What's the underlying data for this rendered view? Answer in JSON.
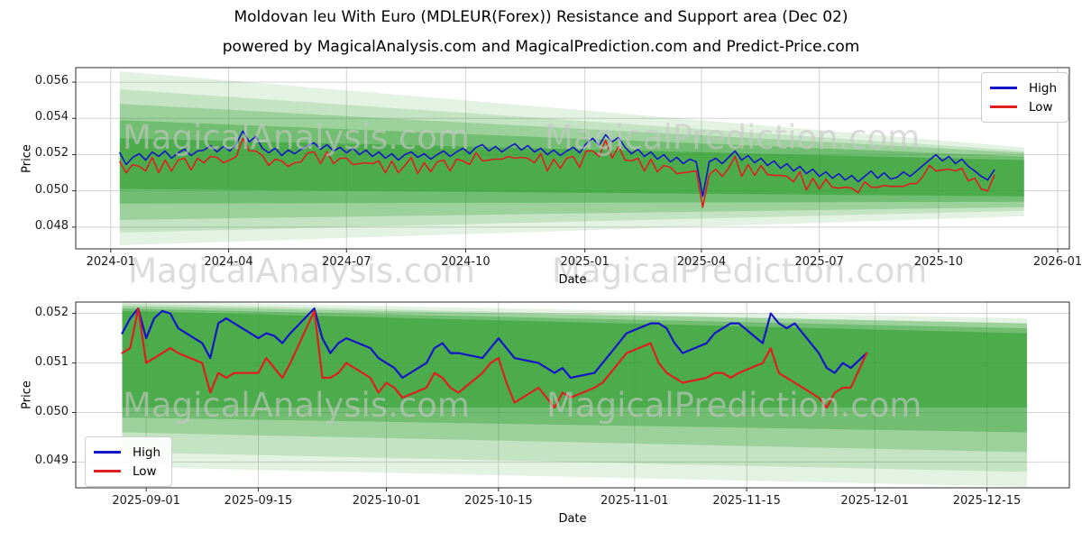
{
  "header": {
    "title": "Moldovan leu With Euro (MDLEUR(Forex)) Resistance and Support area (Dec 02)",
    "subtitle": "powered by MagicalAnalysis.com and MagicalPrediction.com and Predict-Price.com"
  },
  "watermarks": {
    "left": "MagicalAnalysis.com",
    "right": "MagicalPrediction.com"
  },
  "legend": {
    "high": "High",
    "low": "Low"
  },
  "colors": {
    "high": "#1414c8",
    "low": "#de1f1f",
    "band": "#2e9e2e",
    "grid": "#d2d2d2",
    "spine": "#2b2b2b",
    "watermark": "rgba(198,198,198,0.62)"
  },
  "chart_data": [
    {
      "name": "long-term",
      "type": "line",
      "xlabel": "Date",
      "ylabel": "Price",
      "x_unit": "days since 2024-01-01",
      "xlim": [
        -27,
        740
      ],
      "ylim": [
        0.0468,
        0.0568
      ],
      "grid": true,
      "legend_position": "upper-right",
      "xticks": [
        {
          "day": 0,
          "label": "2024-01"
        },
        {
          "day": 91,
          "label": "2024-04"
        },
        {
          "day": 182,
          "label": "2024-07"
        },
        {
          "day": 274,
          "label": "2024-10"
        },
        {
          "day": 366,
          "label": "2025-01"
        },
        {
          "day": 456,
          "label": "2025-04"
        },
        {
          "day": 547,
          "label": "2025-07"
        },
        {
          "day": 639,
          "label": "2025-10"
        },
        {
          "day": 731,
          "label": "2026-01"
        }
      ],
      "yticks": [
        0.048,
        0.05,
        0.052,
        0.054,
        0.056
      ],
      "x_start": 7,
      "x_step": 5,
      "series": [
        {
          "name": "High",
          "values": [
            0.0521,
            0.05145,
            0.05185,
            0.05205,
            0.0517,
            0.05215,
            0.0519,
            0.0522,
            0.0518,
            0.0521,
            0.0523,
            0.05195,
            0.0522,
            0.05225,
            0.0525,
            0.05215,
            0.05245,
            0.0522,
            0.0526,
            0.0533,
            0.0527,
            0.053,
            0.05235,
            0.0521,
            0.05235,
            0.05195,
            0.05225,
            0.05205,
            0.0523,
            0.0525,
            0.05265,
            0.0523,
            0.05255,
            0.0522,
            0.0524,
            0.0521,
            0.05235,
            0.052,
            0.05225,
            0.0519,
            0.05215,
            0.0518,
            0.05205,
            0.0517,
            0.052,
            0.05215,
            0.05185,
            0.05205,
            0.05175,
            0.052,
            0.0522,
            0.0519,
            0.05215,
            0.05235,
            0.05205,
            0.0524,
            0.05255,
            0.0522,
            0.05245,
            0.05215,
            0.0524,
            0.0526,
            0.05225,
            0.0525,
            0.05215,
            0.05235,
            0.052,
            0.05225,
            0.05195,
            0.0522,
            0.0524,
            0.0521,
            0.0526,
            0.0529,
            0.0525,
            0.0531,
            0.0527,
            0.05295,
            0.0524,
            0.05205,
            0.0523,
            0.0519,
            0.05215,
            0.05175,
            0.052,
            0.0516,
            0.05185,
            0.0515,
            0.05175,
            0.0516,
            0.0497,
            0.0516,
            0.0518,
            0.0515,
            0.05185,
            0.0522,
            0.0517,
            0.05195,
            0.05155,
            0.0518,
            0.0514,
            0.05165,
            0.05125,
            0.0515,
            0.0511,
            0.05135,
            0.05095,
            0.0512,
            0.0508,
            0.05105,
            0.0507,
            0.05095,
            0.0506,
            0.05085,
            0.0505,
            0.0508,
            0.0511,
            0.0507,
            0.051,
            0.05065,
            0.05075,
            0.05105,
            0.0508,
            0.0511,
            0.0514,
            0.0517,
            0.052,
            0.05165,
            0.0519,
            0.0515,
            0.05175,
            0.05135,
            0.0511,
            0.0508,
            0.0506,
            0.05115
          ]
        },
        {
          "name": "Low",
          "values": [
            0.0516,
            0.051,
            0.05145,
            0.05135,
            0.0511,
            0.05185,
            0.051,
            0.0517,
            0.0511,
            0.0517,
            0.0518,
            0.05115,
            0.0518,
            0.05155,
            0.0519,
            0.05185,
            0.05155,
            0.0517,
            0.0519,
            0.0529,
            0.0522,
            0.0522,
            0.05195,
            0.0514,
            0.05175,
            0.05165,
            0.05135,
            0.05155,
            0.0516,
            0.0521,
            0.05215,
            0.0515,
            0.05215,
            0.0515,
            0.0518,
            0.0518,
            0.05145,
            0.0515,
            0.05155,
            0.0515,
            0.05165,
            0.051,
            0.05165,
            0.051,
            0.0514,
            0.05185,
            0.05095,
            0.05155,
            0.05105,
            0.0516,
            0.0517,
            0.0511,
            0.05175,
            0.05165,
            0.05145,
            0.0521,
            0.05165,
            0.0517,
            0.05175,
            0.05175,
            0.0519,
            0.0518,
            0.05185,
            0.0518,
            0.05155,
            0.05205,
            0.0511,
            0.05175,
            0.05125,
            0.0518,
            0.0519,
            0.0513,
            0.0522,
            0.0522,
            0.0519,
            0.0528,
            0.0518,
            0.05245,
            0.0517,
            0.05165,
            0.0518,
            0.0511,
            0.05175,
            0.05105,
            0.0514,
            0.0513,
            0.05095,
            0.051,
            0.05105,
            0.0511,
            0.0491,
            0.0509,
            0.0512,
            0.0508,
            0.05125,
            0.0519,
            0.0508,
            0.05145,
            0.05085,
            0.0514,
            0.0509,
            0.05085,
            0.05085,
            0.0508,
            0.0505,
            0.05105,
            0.05005,
            0.0507,
            0.0501,
            0.05065,
            0.0502,
            0.05015,
            0.0502,
            0.05015,
            0.0499,
            0.0505,
            0.0502,
            0.0502,
            0.0503,
            0.05025,
            0.05025,
            0.05025,
            0.0504,
            0.0504,
            0.0508,
            0.0514,
            0.0511,
            0.05115,
            0.0512,
            0.0511,
            0.05125,
            0.05055,
            0.0507,
            0.0501,
            0.05,
            0.05085
          ]
        }
      ],
      "bands": {
        "wedges": [
          [
            7,
            0.0566,
            0.047,
            705,
            0.0524,
            0.0486,
            0.13
          ],
          [
            7,
            0.0556,
            0.0477,
            705,
            0.0522,
            0.0489,
            0.18
          ],
          [
            7,
            0.0548,
            0.0484,
            705,
            0.0521,
            0.0491,
            0.26
          ],
          [
            7,
            0.0539,
            0.0493,
            705,
            0.0519,
            0.0494,
            0.38
          ],
          [
            7,
            0.0529,
            0.0501,
            705,
            0.0517,
            0.0497,
            0.55
          ]
        ]
      }
    },
    {
      "name": "short-term",
      "type": "line",
      "xlabel": "Date",
      "ylabel": "Price",
      "x_unit": "days since 2025-09-01",
      "xlim": [
        -8.8,
        115.3
      ],
      "ylim": [
        0.04848,
        0.05223
      ],
      "grid": true,
      "legend_position": "lower-left",
      "xticks": [
        {
          "day": 0,
          "label": "2025-09-01"
        },
        {
          "day": 14,
          "label": "2025-09-15"
        },
        {
          "day": 30,
          "label": "2025-10-01"
        },
        {
          "day": 44,
          "label": "2025-10-15"
        },
        {
          "day": 61,
          "label": "2025-11-01"
        },
        {
          "day": 75,
          "label": "2025-11-15"
        },
        {
          "day": 91,
          "label": "2025-12-01"
        },
        {
          "day": 105,
          "label": "2025-12-15"
        }
      ],
      "yticks": [
        0.049,
        0.05,
        0.051,
        0.052
      ],
      "x": [
        -3,
        -2,
        -1,
        0,
        1,
        2,
        3,
        4,
        7,
        8,
        9,
        10,
        11,
        14,
        15,
        16,
        17,
        18,
        21,
        22,
        23,
        24,
        25,
        28,
        29,
        30,
        31,
        32,
        35,
        36,
        37,
        38,
        39,
        42,
        43,
        44,
        45,
        46,
        49,
        50,
        51,
        52,
        53,
        56,
        57,
        58,
        59,
        60,
        63,
        64,
        65,
        66,
        67,
        70,
        71,
        72,
        73,
        74,
        77,
        78,
        79,
        80,
        81,
        84,
        85,
        86,
        87,
        88,
        90
      ],
      "series": [
        {
          "name": "High",
          "values": [
            0.0516,
            0.0519,
            0.0521,
            0.0515,
            0.0519,
            0.05205,
            0.052,
            0.0517,
            0.0514,
            0.0511,
            0.0518,
            0.0519,
            0.0518,
            0.0515,
            0.0516,
            0.05155,
            0.0514,
            0.0516,
            0.0521,
            0.0515,
            0.0512,
            0.0514,
            0.0515,
            0.0513,
            0.0511,
            0.051,
            0.0509,
            0.0507,
            0.051,
            0.0513,
            0.0514,
            0.0512,
            0.0512,
            0.0511,
            0.0513,
            0.0515,
            0.0513,
            0.0511,
            0.051,
            0.0509,
            0.0508,
            0.0509,
            0.0507,
            0.0508,
            0.051,
            0.0512,
            0.0514,
            0.0516,
            0.0518,
            0.0518,
            0.0517,
            0.0514,
            0.0512,
            0.0514,
            0.0516,
            0.0517,
            0.0518,
            0.0518,
            0.0514,
            0.052,
            0.0518,
            0.0517,
            0.0518,
            0.0512,
            0.0509,
            0.0508,
            0.051,
            0.0509,
            0.0512
          ]
        },
        {
          "name": "Low",
          "values": [
            0.0512,
            0.0513,
            0.0521,
            0.051,
            0.0511,
            0.0512,
            0.0513,
            0.0512,
            0.051,
            0.0504,
            0.0508,
            0.0507,
            0.0508,
            0.0508,
            0.0511,
            0.0509,
            0.0507,
            0.051,
            0.05205,
            0.0507,
            0.0507,
            0.0508,
            0.051,
            0.0507,
            0.0504,
            0.0506,
            0.0505,
            0.0503,
            0.0505,
            0.0508,
            0.0507,
            0.0505,
            0.0504,
            0.0508,
            0.051,
            0.0511,
            0.0506,
            0.0502,
            0.0505,
            0.0503,
            0.0501,
            0.0504,
            0.0503,
            0.0505,
            0.0506,
            0.0508,
            0.051,
            0.0512,
            0.0514,
            0.051,
            0.0508,
            0.0507,
            0.0506,
            0.0507,
            0.0508,
            0.0508,
            0.0507,
            0.0508,
            0.051,
            0.0513,
            0.0508,
            0.0507,
            0.0506,
            0.0503,
            0.0501,
            0.0504,
            0.0505,
            0.0505,
            0.0512
          ]
        }
      ],
      "bands": {
        "wedges": [
          [
            -3,
            0.05225,
            0.0489,
            110,
            0.0519,
            0.0485,
            0.13
          ],
          [
            -3,
            0.0522,
            0.0492,
            110,
            0.0518,
            0.0488,
            0.18
          ],
          [
            -3,
            0.05215,
            0.0496,
            110,
            0.0518,
            0.0492,
            0.26
          ],
          [
            -3,
            0.0521,
            0.0499,
            110,
            0.0517,
            0.0496,
            0.38
          ],
          [
            -3,
            0.05205,
            0.0501,
            110,
            0.0516,
            0.0501,
            0.55
          ]
        ]
      }
    }
  ]
}
